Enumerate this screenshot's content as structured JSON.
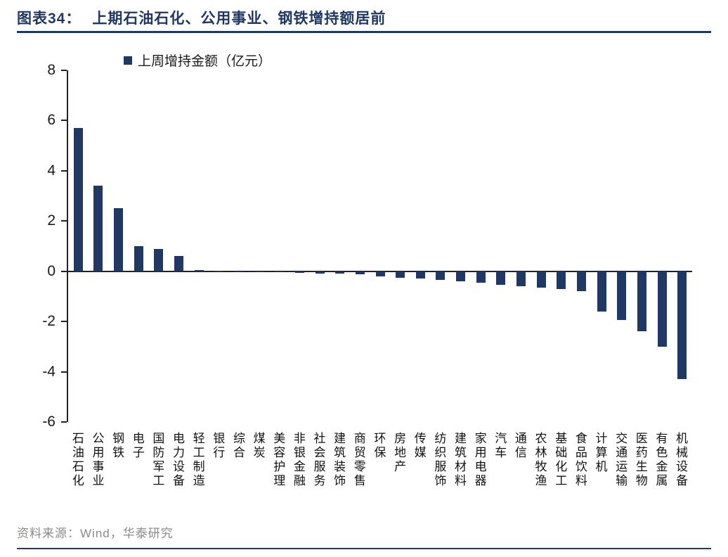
{
  "header": {
    "tag": "图表34：",
    "title": "上期石油石化、公用事业、钢铁增持额居前"
  },
  "legend": {
    "label": "上周增持金额（亿元）"
  },
  "footer": {
    "source": "资料来源：Wind，华泰研究"
  },
  "colors": {
    "bar": "#1F3864",
    "title": "#1F3864",
    "axis": "#222222",
    "source_text": "#8A8A8A"
  },
  "chart_data": {
    "type": "bar",
    "title": "上周增持金额（亿元）",
    "xlabel": "",
    "ylabel": "",
    "legend": [
      "上周增持金额（亿元）"
    ],
    "legend_position": "top",
    "grid": false,
    "ylim": [
      -6,
      8
    ],
    "yticks": [
      8,
      6,
      4,
      2,
      0,
      -2,
      -4,
      -6
    ],
    "categories": [
      "石油石化",
      "公用事业",
      "钢铁",
      "电子",
      "国防军工",
      "电力设备",
      "轻工制造",
      "银行",
      "综合",
      "煤炭",
      "美容护理",
      "非银金融",
      "社会服务",
      "建筑装饰",
      "商贸零售",
      "环保",
      "房地产",
      "传媒",
      "纺织服饰",
      "建筑材料",
      "家用电器",
      "汽车",
      "通信",
      "农林牧渔",
      "基础化工",
      "食品饮料",
      "计算机",
      "交通运输",
      "医药生物",
      "有色金属",
      "机械设备"
    ],
    "values": [
      5.7,
      3.4,
      2.5,
      1.0,
      0.9,
      0.6,
      0.05,
      0.03,
      0.0,
      -0.02,
      -0.05,
      -0.06,
      -0.08,
      -0.1,
      -0.12,
      -0.2,
      -0.25,
      -0.3,
      -0.35,
      -0.4,
      -0.45,
      -0.55,
      -0.6,
      -0.65,
      -0.7,
      -0.8,
      -1.6,
      -1.95,
      -2.4,
      -3.0,
      -4.3
    ]
  }
}
